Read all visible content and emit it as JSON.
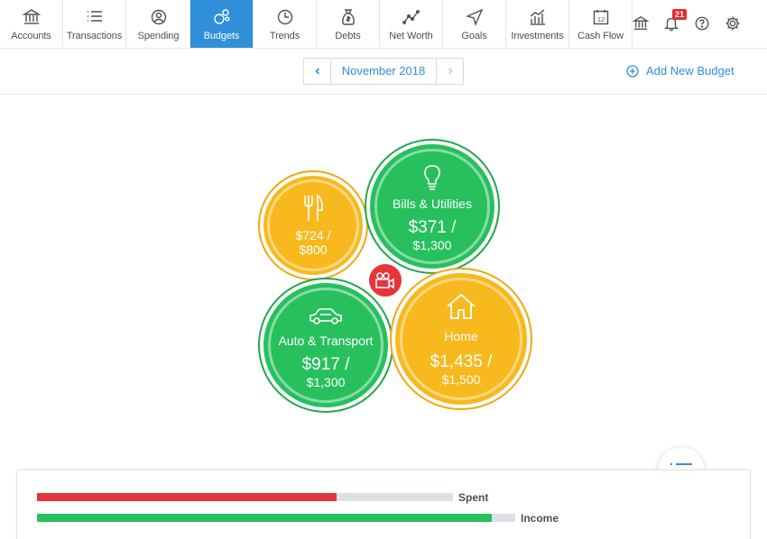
{
  "nav": {
    "tabs": [
      {
        "label": "Accounts",
        "icon": "bank-icon"
      },
      {
        "label": "Transactions",
        "icon": "list-icon"
      },
      {
        "label": "Spending",
        "icon": "pie-chart-icon"
      },
      {
        "label": "Budgets",
        "icon": "bubbles-icon",
        "active": true
      },
      {
        "label": "Trends",
        "icon": "clock-icon"
      },
      {
        "label": "Debts",
        "icon": "money-bag-icon"
      },
      {
        "label": "Net Worth",
        "icon": "line-chart-icon"
      },
      {
        "label": "Goals",
        "icon": "navigation-icon"
      },
      {
        "label": "Investments",
        "icon": "bar-chart-icon"
      },
      {
        "label": "Cash Flow",
        "icon": "calendar-icon"
      }
    ],
    "calendar_day": "12",
    "notification_count": "21"
  },
  "toolbar": {
    "month": "November 2018",
    "add_budget_label": "Add New Budget"
  },
  "budgets": [
    {
      "name": "",
      "spent": "$724 /",
      "total": "$800",
      "icon": "fork-knife-icon",
      "status_color": "#f7b91d"
    },
    {
      "name": "Bills & Utilities",
      "spent": "$371 /",
      "total": "$1,300",
      "icon": "lightbulb-icon",
      "status_color": "#27c05d"
    },
    {
      "name": "Auto & Transport",
      "spent": "$917 /",
      "total": "$1,300",
      "icon": "car-icon",
      "status_color": "#27c05d"
    },
    {
      "name": "Home",
      "spent": "$1,435 /",
      "total": "$1,500",
      "icon": "house-icon",
      "status_color": "#f7b91d"
    }
  ],
  "summary": {
    "spent_label": "Spent",
    "income_label": "Income",
    "spent_fraction": 0.72,
    "income_fraction": 0.95,
    "spent_color": "#e5353b",
    "income_color": "#27c05d"
  }
}
